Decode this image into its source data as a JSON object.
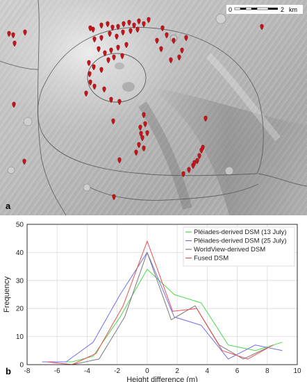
{
  "panels": {
    "a": {
      "letter": "a"
    },
    "b": {
      "letter": "b"
    }
  },
  "map": {
    "scale_bar": {
      "start_label": "0",
      "end_label": "2",
      "unit_label": "km"
    },
    "marker_color": "#c0161b",
    "contour_color": "#555555"
  },
  "chart_data": {
    "type": "line",
    "xlabel": "Height difference (m)",
    "ylabel": "Frequency",
    "xlim": [
      -8,
      10
    ],
    "ylim": [
      0,
      50
    ],
    "xticks": [
      -8,
      -6,
      -4,
      -2,
      0,
      2,
      4,
      6,
      8,
      10
    ],
    "yticks": [
      0,
      10,
      20,
      30,
      40,
      50
    ],
    "grid": true,
    "legend_position": "top-right",
    "series": [
      {
        "name": "Pléiades-derived DSM (13 July)",
        "color": "#4bd94b",
        "x": [
          -7,
          -5,
          -3.6,
          -1.8,
          0,
          1.8,
          3.6,
          5.4,
          7.2,
          9
        ],
        "y": [
          1,
          1,
          3,
          17,
          34,
          25,
          22,
          7,
          5,
          8
        ]
      },
      {
        "name": "Pléiades-derived DSM (25 July)",
        "color": "#6f6ff2",
        "x": [
          -7,
          -5.4,
          -3.6,
          -1.8,
          0,
          1.8,
          3.6,
          5.4,
          7.2,
          9
        ],
        "y": [
          1,
          1,
          8,
          25,
          40,
          17,
          14,
          2,
          7,
          5
        ]
      },
      {
        "name": "WorldView-derived DSM",
        "color": "#7a7a7a",
        "x": [
          -5,
          -3.2,
          -1.5,
          0,
          1.6,
          3.2,
          4.8,
          6.4,
          8
        ],
        "y": [
          0,
          2,
          17,
          40,
          16,
          21,
          7,
          2,
          6
        ]
      },
      {
        "name": "Fused DSM",
        "color": "#ee5050",
        "x": [
          -6.7,
          -5,
          -3.4,
          -1.6,
          0,
          1.7,
          3.3,
          5,
          6.7,
          8.4
        ],
        "y": [
          1,
          0,
          4,
          21,
          44,
          19,
          20,
          5,
          2,
          7
        ]
      }
    ]
  }
}
